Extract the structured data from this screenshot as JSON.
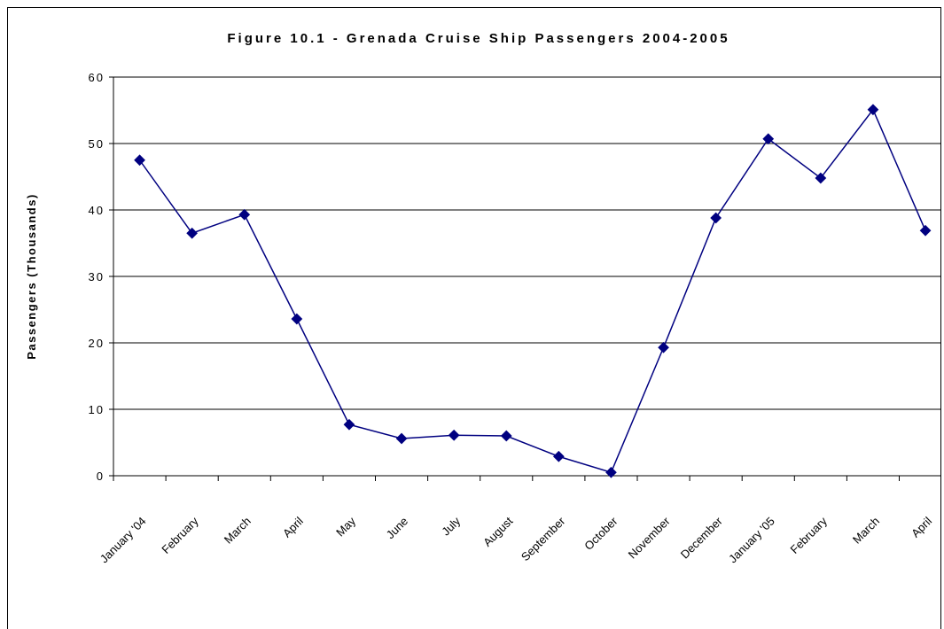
{
  "chart_data": {
    "type": "line",
    "title": "Figure 10.1 - Grenada Cruise Ship Passengers 2004-2005",
    "y_label": "Passengers (Thousands)",
    "categories": [
      "January '04",
      "February",
      "March",
      "April",
      "May",
      "June",
      "July",
      "August",
      "September",
      "October",
      "November",
      "December",
      "January '05",
      "February",
      "March",
      "April"
    ],
    "series": [
      {
        "name": "Passengers",
        "color": "#000080",
        "values": [
          47.5,
          36.5,
          39.3,
          23.6,
          7.7,
          5.6,
          6.1,
          6.0,
          2.9,
          0.5,
          19.3,
          38.8,
          50.7,
          44.8,
          55.1,
          36.9
        ]
      }
    ],
    "ylim": [
      0,
      60
    ],
    "yticks": [
      0,
      10,
      20,
      30,
      40,
      50,
      60
    ],
    "grid": true
  }
}
